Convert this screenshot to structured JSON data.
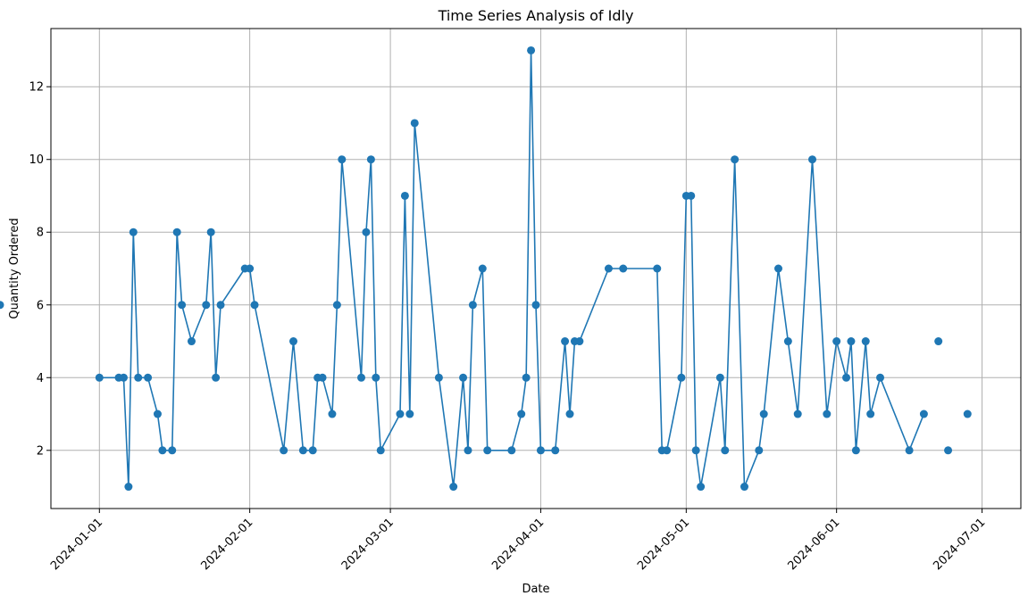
{
  "chart_data": {
    "type": "line",
    "title": "Time Series Analysis of Idly",
    "xlabel": "Date",
    "ylabel": "Quantity Ordered",
    "xlim": [
      "2023-12-22",
      "2024-07-09"
    ],
    "ylim": [
      0.4,
      13.6
    ],
    "x_ticks": [
      "2024-01-01",
      "2024-02-01",
      "2024-03-01",
      "2024-04-01",
      "2024-05-01",
      "2024-06-01",
      "2024-07-01"
    ],
    "y_ticks": [
      2,
      4,
      6,
      8,
      10,
      12
    ],
    "grid": true,
    "color": "#1f77b4",
    "marker": "circle",
    "series": [
      {
        "x": [
          "2024-01-01",
          "2024-01-05",
          "2024-01-06",
          "2024-01-07",
          "2024-01-08",
          "2024-01-09",
          "2024-01-11",
          "2024-01-13",
          "2024-01-14",
          "2024-01-16",
          "2024-01-17",
          "2024-01-18",
          "2024-01-20",
          "2024-01-23",
          "2024-01-24",
          "2024-01-25",
          "2024-01-26",
          "2024-01-31",
          "2024-02-01",
          "2024-02-02",
          "2024-02-08",
          "2024-02-10",
          "2024-02-12",
          "2024-02-14",
          "2024-02-15",
          "2024-02-16",
          "2024-02-18",
          "2024-02-19",
          "2024-02-20",
          "2024-02-24",
          "2024-02-25",
          "2024-02-26",
          "2024-02-27",
          "2024-02-28",
          "2024-03-03",
          "2024-03-04",
          "2024-03-05",
          "2024-03-06",
          "2024-03-11",
          "2024-03-14",
          "2024-03-16",
          "2024-03-17",
          "2024-03-18",
          "2024-03-20",
          "2024-03-21",
          "2024-03-26",
          "2024-03-28",
          "2024-03-29",
          "2024-03-30",
          "2024-03-31",
          "2024-04-01",
          "2024-04-04",
          "2024-04-06",
          "2024-04-07",
          "2024-04-08",
          "2024-04-09",
          "2024-04-15",
          "2024-04-18",
          "2024-04-25",
          "2024-04-26",
          "2024-04-27",
          "2024-04-30",
          "2024-05-01",
          "2024-05-02",
          "2024-05-03",
          "2024-05-04",
          "2024-05-08",
          "2024-05-09",
          "2024-05-11",
          "2024-05-13",
          "2024-05-16",
          "2024-05-17",
          "2024-05-20",
          "2024-05-22",
          "2024-05-24",
          "2024-05-27",
          "2024-05-30",
          "2024-06-01",
          "2024-06-03",
          "2024-06-04",
          "2024-06-05",
          "2024-06-07",
          "2024-06-08",
          "2024-06-10",
          "2024-06-16",
          "2024-06-19",
          "24-06-21",
          "2024-06-22",
          "2024-06-24",
          "2024-06-28"
        ],
        "y": [
          4,
          4,
          4,
          1,
          8,
          4,
          4,
          3,
          2,
          2,
          8,
          6,
          5,
          6,
          8,
          4,
          6,
          7,
          7,
          6,
          2,
          5,
          2,
          2,
          4,
          4,
          3,
          6,
          10,
          4,
          8,
          10,
          4,
          2,
          3,
          9,
          3,
          11,
          4,
          1,
          4,
          2,
          6,
          7,
          2,
          2,
          3,
          4,
          13,
          6,
          2,
          2,
          5,
          3,
          5,
          5,
          7,
          7,
          7,
          2,
          2,
          4,
          9,
          9,
          2,
          1,
          4,
          2,
          10,
          1,
          2,
          3,
          7,
          5,
          3,
          10,
          3,
          5,
          4,
          5,
          2,
          5,
          3,
          4,
          2,
          3,
          6,
          5,
          2,
          3
        ]
      }
    ]
  }
}
